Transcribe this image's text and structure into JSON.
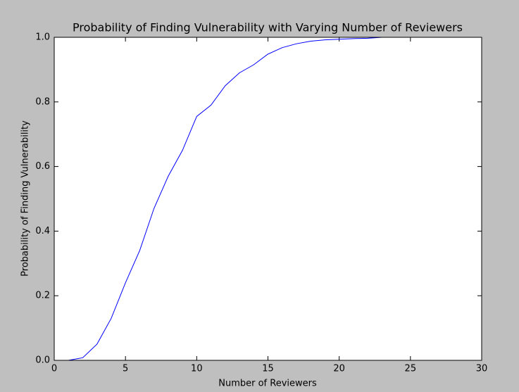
{
  "chart_data": {
    "type": "line",
    "title": "Probability of Finding Vulnerability with Varying Number of Reviewers",
    "xlabel": "Number of Reviewers",
    "ylabel": "Probability of Finding Vulnerability",
    "x": [
      1,
      2,
      3,
      4,
      5,
      6,
      7,
      8,
      9,
      10,
      11,
      12,
      13,
      14,
      15,
      16,
      17,
      18,
      19,
      20,
      21,
      22,
      23
    ],
    "series": [
      {
        "color": "#0000ff",
        "values": [
          0.0,
          0.008,
          0.05,
          0.13,
          0.24,
          0.34,
          0.47,
          0.57,
          0.65,
          0.755,
          0.79,
          0.85,
          0.89,
          0.915,
          0.948,
          0.968,
          0.98,
          0.988,
          0.992,
          0.994,
          0.996,
          0.997,
          1.0
        ]
      }
    ],
    "xlim": [
      0,
      30
    ],
    "xticks": [
      0,
      5,
      10,
      15,
      20,
      25,
      30
    ],
    "ylim": [
      0,
      1
    ],
    "yticks": [
      {
        "value": 0,
        "label": "0.0"
      },
      0.2,
      0.4,
      0.6,
      0.8,
      {
        "value": 1,
        "label": "1.0"
      }
    ],
    "grid": false
  }
}
